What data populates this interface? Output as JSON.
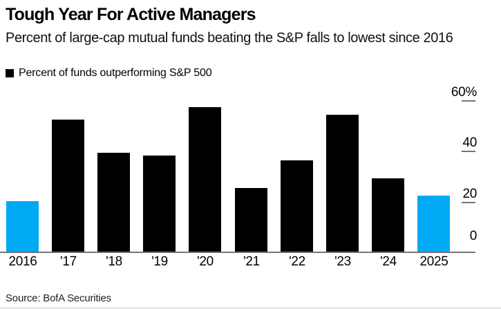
{
  "header": {
    "title": "Tough Year For Active Managers",
    "subtitle": "Percent of large-cap mutual funds beating the S&P falls to lowest since 2016"
  },
  "legend": {
    "label": "Percent of funds outperforming S&P 500",
    "swatch_color": "#000000"
  },
  "source": "Source: BofA Securities",
  "colors": {
    "bar": "#000000",
    "highlight": "#00a9f4",
    "axis_line": "#757575",
    "tick_dash": "#757575",
    "divider": "#bfbfbf"
  },
  "chart_data": {
    "type": "bar",
    "title": "Tough Year For Active Managers",
    "subtitle": "Percent of large-cap mutual funds beating the S&P falls to lowest since 2016",
    "categories": [
      "2016",
      "'17",
      "'18",
      "'19",
      "'20",
      "'21",
      "'22",
      "'23",
      "'24",
      "2025"
    ],
    "values": [
      20,
      52,
      39,
      38,
      57,
      25,
      36,
      54,
      29,
      22
    ],
    "highlight": {
      "categories": [
        "2016",
        "2025"
      ],
      "color": "#00a9f4"
    },
    "xlabel": "",
    "ylabel": "",
    "ylim": [
      0,
      60
    ],
    "yticks": [
      0,
      20,
      40,
      60
    ],
    "ytick_labels": [
      "0",
      "20",
      "40",
      "60%"
    ],
    "ytick_side": "right",
    "grid": false,
    "legend": [
      "Percent of funds outperforming S&P 500"
    ],
    "legend_position": "top-left",
    "source": "Source: BofA Securities"
  }
}
